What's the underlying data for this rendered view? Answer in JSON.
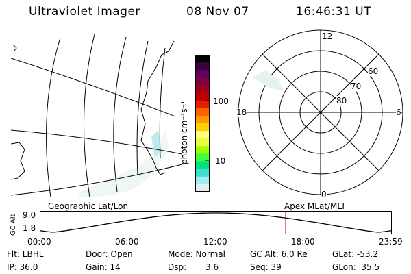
{
  "header": {
    "instrument": "Ultraviolet Imager",
    "date": "08 Nov 07",
    "time": "16:46:31 UT"
  },
  "colorbar": {
    "label": "photon cm⁻²s⁻¹",
    "ticks": [
      "100",
      "10"
    ],
    "colors": [
      "#000000",
      "#3a0040",
      "#600060",
      "#800040",
      "#a00020",
      "#c00000",
      "#e02000",
      "#ff6000",
      "#ff9900",
      "#ffd000",
      "#ffff80",
      "#e8ff40",
      "#a0ff00",
      "#40ff40",
      "#00e080",
      "#40e0d0",
      "#a0eef0",
      "#e0f0f0"
    ]
  },
  "geo_panel": {
    "title": "Geographic Lat/Lon"
  },
  "polar_panel": {
    "title": "Apex MLat/MLT",
    "mlt_labels": {
      "top": "12",
      "right": "6",
      "bottom": "0",
      "left": "18"
    },
    "mlat_labels": [
      "60",
      "70",
      "80"
    ]
  },
  "timeline": {
    "y_label": "GC Alt",
    "y_ticks": [
      "9.0",
      "1.8"
    ],
    "x_ticks": [
      "00:00",
      "06:00",
      "12:00",
      "18:00",
      "23:59"
    ],
    "cursor_time_hours": 16.775,
    "cursor_color": "#cc0000"
  },
  "info": {
    "filter": "Flt: LBHL",
    "ip": "IP: 36.0",
    "door": "Door: Open",
    "gain": "Gain: 14",
    "mode": "Mode: Normal",
    "dsp_label": "Dsp:",
    "dsp_value": "3.6",
    "gc_alt": "GC Alt: 6.0 Re",
    "seq": "Seq: 39",
    "glat": "GLat: -53.2",
    "glon": "GLon:  35.5"
  }
}
